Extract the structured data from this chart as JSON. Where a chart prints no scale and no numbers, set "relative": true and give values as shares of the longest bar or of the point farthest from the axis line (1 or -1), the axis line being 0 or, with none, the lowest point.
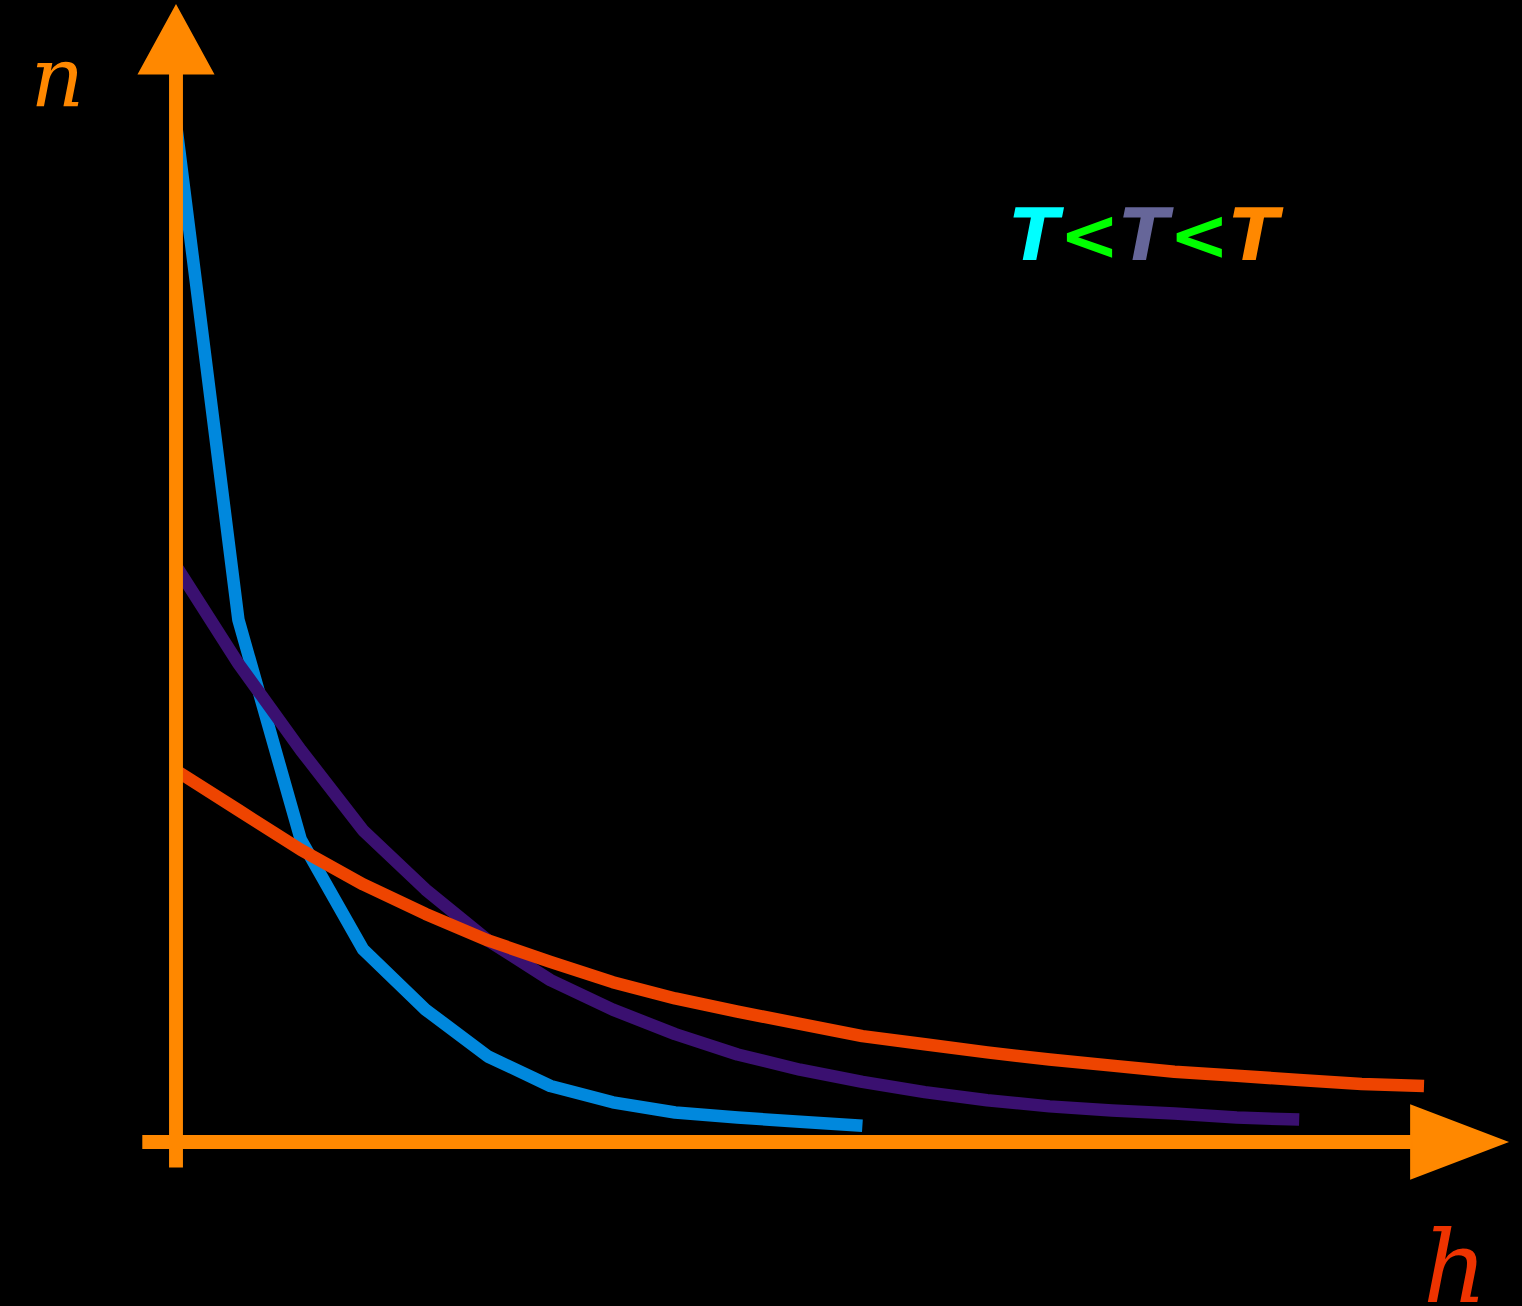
{
  "chart_data": {
    "type": "line",
    "relative": true,
    "xlabel": "h",
    "ylabel": "n",
    "annotations": [
      "T<T<T"
    ],
    "legend": false,
    "grid": false,
    "categories": [
      null,
      null,
      null,
      null,
      null,
      null,
      null,
      null,
      null,
      null,
      null,
      null,
      null,
      null,
      null,
      null,
      null,
      null,
      null,
      null,
      null
    ],
    "series": [
      {
        "color": "#0088dd",
        "values": [
          1.0,
          0.513,
          0.297,
          0.189,
          0.13,
          0.084,
          0.055,
          0.039,
          0.029,
          0.024,
          0.02,
          0.016,
          null,
          null,
          null,
          null,
          null,
          null,
          null,
          null,
          null
        ]
      },
      {
        "color": "#3a1070",
        "values": [
          0.566,
          0.47,
          0.385,
          0.306,
          0.248,
          0.198,
          0.159,
          0.13,
          0.106,
          0.086,
          0.071,
          0.059,
          0.049,
          0.041,
          0.035,
          0.031,
          0.028,
          0.024,
          0.022,
          null,
          null
        ]
      },
      {
        "color": "#ee4400",
        "values": [
          0.365,
          0.326,
          0.287,
          0.253,
          0.224,
          0.198,
          0.177,
          0.157,
          0.141,
          0.128,
          0.116,
          0.104,
          0.096,
          0.088,
          0.081,
          0.075,
          0.069,
          0.065,
          0.061,
          0.057,
          0.055
        ]
      }
    ]
  }
}
